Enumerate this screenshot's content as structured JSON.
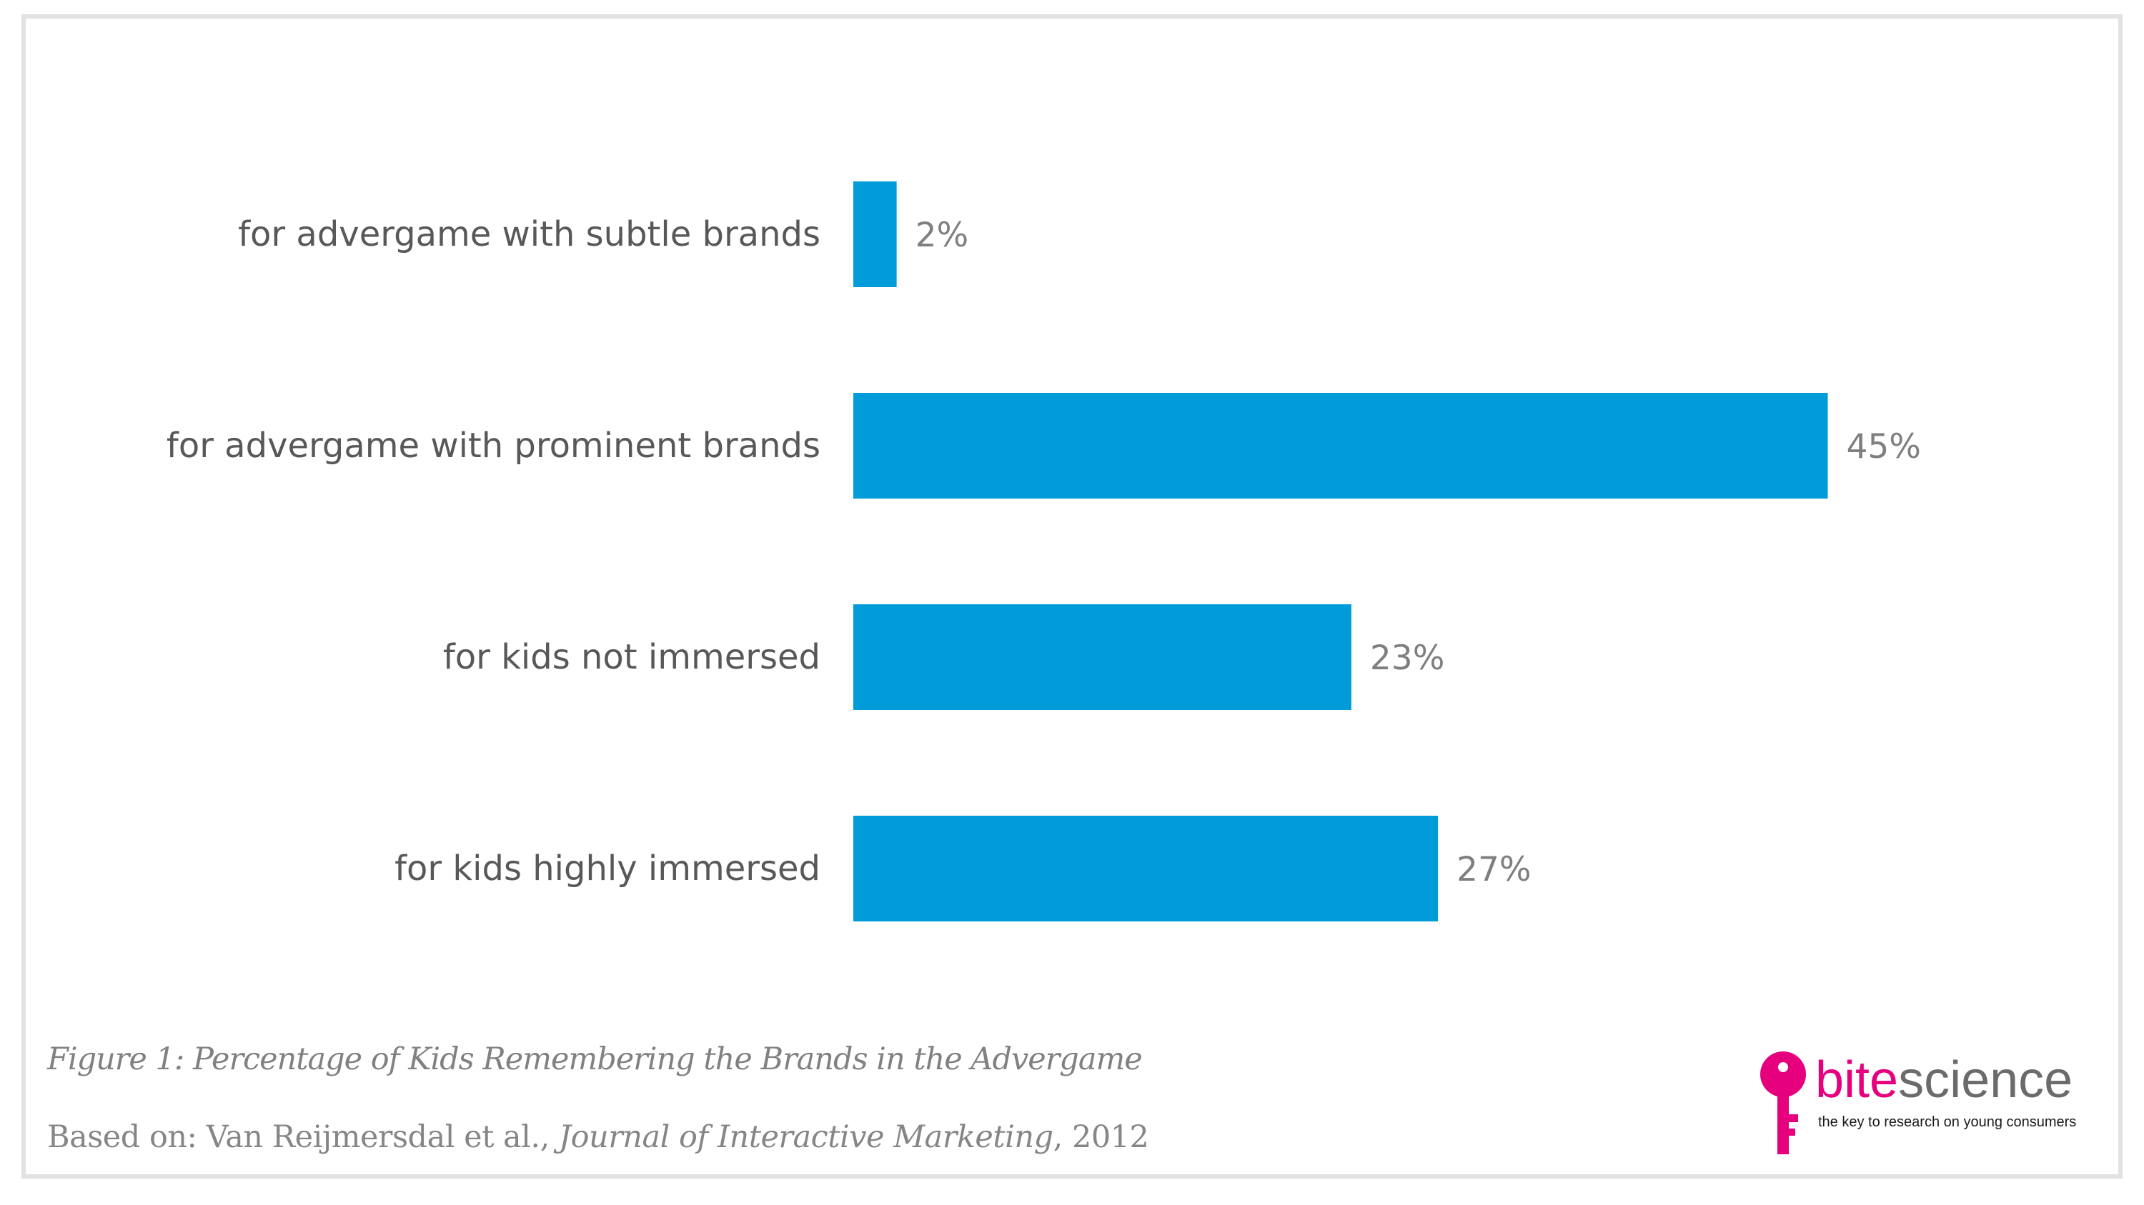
{
  "chart_data": {
    "type": "bar",
    "orientation": "horizontal",
    "categories": [
      "for advergame with subtle brands",
      "for advergame with prominent brands",
      "for kids not immersed",
      "for kids highly immersed"
    ],
    "values": [
      2,
      45,
      23,
      27
    ],
    "value_labels": [
      "2%",
      "45%",
      "23%",
      "27%"
    ],
    "unit": "%",
    "xlim": [
      0,
      50
    ],
    "grid": false,
    "legend": "none",
    "bar_color": "#009bd9"
  },
  "caption": "Figure 1: Percentage of Kids Remembering the Brands in the Advergame",
  "source": {
    "prefix": "Based on: Van Reijmersdal et al., ",
    "journal": "Journal of Interactive Marketing",
    "suffix": ", 2012"
  },
  "logo": {
    "brand_part1": "bite",
    "brand_part2": "science",
    "tagline": "the key to research on young consumers",
    "brand_color": "#e6007e",
    "icon": "key-icon"
  }
}
